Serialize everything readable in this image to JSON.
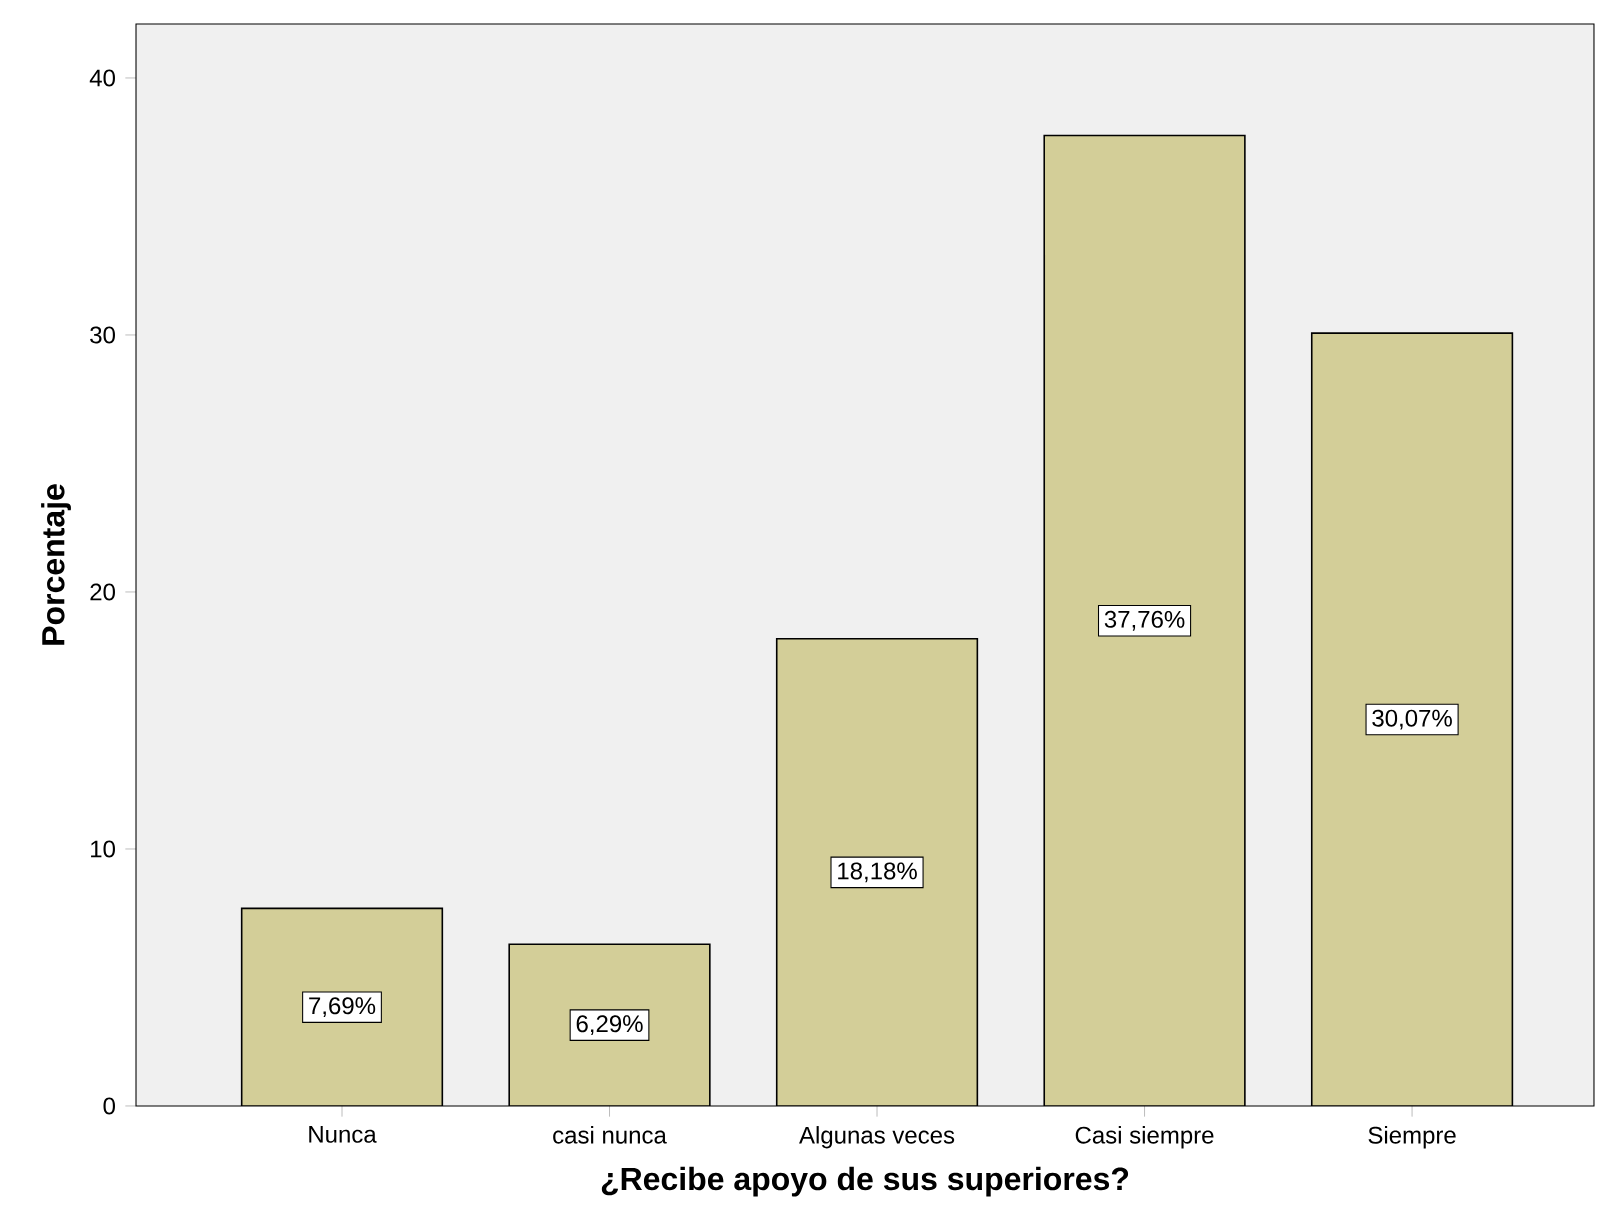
{
  "chart_data": {
    "type": "bar",
    "xlabel": "¿Recibe apoyo de sus superiores?",
    "ylabel": "Porcentaje",
    "categories": [
      "Nunca",
      "casi nunca",
      "Algunas veces",
      "Casi siempre",
      "Siempre"
    ],
    "values": [
      7.69,
      6.29,
      18.18,
      37.76,
      30.07
    ],
    "value_labels": [
      "7,69%",
      "6,29%",
      "18,18%",
      "37,76%",
      "30,07%"
    ],
    "color": "#d3ce98",
    "ylim": [
      0,
      42.1
    ],
    "yticks": [
      0,
      10,
      20,
      30,
      40
    ],
    "grid": false
  }
}
